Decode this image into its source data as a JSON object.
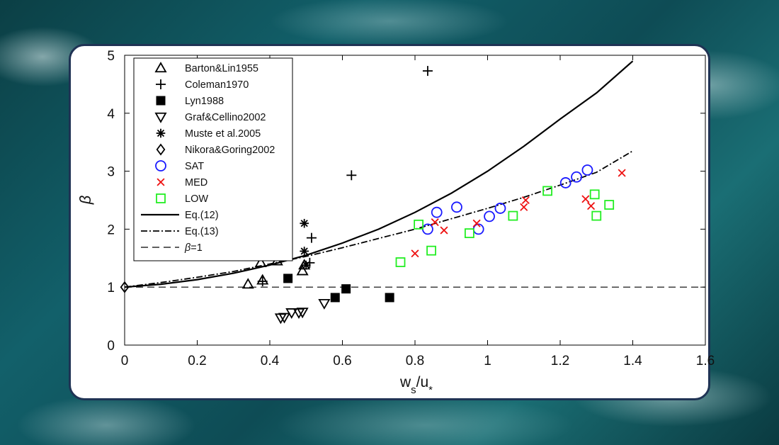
{
  "chart_data": {
    "type": "scatter",
    "title": "",
    "xlabel": "w_s/u_*",
    "ylabel": "β",
    "xlim": [
      0,
      1.6
    ],
    "ylim": [
      0,
      5
    ],
    "xticks": [
      "0",
      "0.2",
      "0.4",
      "0.6",
      "0.8",
      "1",
      "1.2",
      "1.4",
      "1.6"
    ],
    "yticks": [
      "0",
      "1",
      "2",
      "3",
      "4",
      "5"
    ],
    "grid": false,
    "legend_position": "top-left",
    "series": [
      {
        "name": "Barton&Lin1955",
        "marker": "triangle-up",
        "color": "#000000",
        "points": [
          [
            0.34,
            1.05
          ],
          [
            0.375,
            1.42
          ],
          [
            0.38,
            1.12
          ],
          [
            0.42,
            1.45
          ],
          [
            0.49,
            1.28
          ],
          [
            0.495,
            1.38
          ]
        ]
      },
      {
        "name": "Coleman1970",
        "marker": "plus",
        "color": "#000000",
        "points": [
          [
            0.835,
            4.73
          ],
          [
            0.625,
            2.93
          ],
          [
            0.515,
            1.85
          ],
          [
            0.51,
            1.42
          ],
          [
            0.38,
            1.1
          ]
        ]
      },
      {
        "name": "Lyn1988",
        "marker": "square-filled",
        "color": "#000000",
        "points": [
          [
            0.45,
            1.15
          ],
          [
            0.58,
            0.82
          ],
          [
            0.61,
            0.97
          ],
          [
            0.73,
            0.82
          ]
        ]
      },
      {
        "name": "Graf&Cellino2002",
        "marker": "triangle-down",
        "color": "#000000",
        "points": [
          [
            0.43,
            0.47
          ],
          [
            0.44,
            0.48
          ],
          [
            0.46,
            0.56
          ],
          [
            0.48,
            0.56
          ],
          [
            0.49,
            0.57
          ],
          [
            0.55,
            0.72
          ]
        ]
      },
      {
        "name": "Muste et al.2005",
        "marker": "asterisk",
        "color": "#000000",
        "points": [
          [
            0.495,
            2.1
          ],
          [
            0.495,
            1.62
          ],
          [
            0.5,
            1.38
          ]
        ]
      },
      {
        "name": "Nikora&Goring2002",
        "marker": "diamond",
        "color": "#000000",
        "points": [
          [
            0.0,
            1.0
          ]
        ]
      },
      {
        "name": "SAT",
        "marker": "circle",
        "color": "#1a1aff",
        "points": [
          [
            0.835,
            2.0
          ],
          [
            0.86,
            2.29
          ],
          [
            0.915,
            2.38
          ],
          [
            0.975,
            2.0
          ],
          [
            1.005,
            2.22
          ],
          [
            1.035,
            2.36
          ],
          [
            1.215,
            2.8
          ],
          [
            1.245,
            2.9
          ],
          [
            1.275,
            3.02
          ]
        ]
      },
      {
        "name": "MED",
        "marker": "x",
        "color": "#ee1111",
        "points": [
          [
            0.8,
            1.58
          ],
          [
            0.855,
            2.12
          ],
          [
            0.88,
            1.98
          ],
          [
            0.97,
            2.1
          ],
          [
            1.1,
            2.38
          ],
          [
            1.105,
            2.5
          ],
          [
            1.27,
            2.52
          ],
          [
            1.285,
            2.4
          ],
          [
            1.37,
            2.97
          ]
        ]
      },
      {
        "name": "LOW",
        "marker": "square",
        "color": "#22ee22",
        "points": [
          [
            0.76,
            1.43
          ],
          [
            0.81,
            2.08
          ],
          [
            0.845,
            1.63
          ],
          [
            0.95,
            1.93
          ],
          [
            1.07,
            2.23
          ],
          [
            1.165,
            2.66
          ],
          [
            1.295,
            2.6
          ],
          [
            1.3,
            2.23
          ],
          [
            1.335,
            2.42
          ]
        ]
      }
    ],
    "lines": [
      {
        "name": "Eq.(12)",
        "style": "solid",
        "color": "#000000",
        "x": [
          0,
          0.1,
          0.2,
          0.3,
          0.4,
          0.5,
          0.6,
          0.7,
          0.8,
          0.9,
          1.0,
          1.1,
          1.2,
          1.3,
          1.4
        ],
        "y": [
          1.0,
          1.05,
          1.13,
          1.24,
          1.38,
          1.55,
          1.76,
          2.0,
          2.29,
          2.62,
          3.0,
          3.43,
          3.9,
          4.35,
          4.9
        ]
      },
      {
        "name": "Eq.(13)",
        "style": "dashdot",
        "color": "#000000",
        "x": [
          0,
          0.1,
          0.2,
          0.3,
          0.4,
          0.5,
          0.6,
          0.7,
          0.8,
          0.9,
          1.0,
          1.1,
          1.2,
          1.3,
          1.4
        ],
        "y": [
          1.0,
          1.08,
          1.17,
          1.27,
          1.4,
          1.53,
          1.68,
          1.84,
          2.0,
          2.18,
          2.36,
          2.55,
          2.76,
          2.98,
          3.35
        ]
      },
      {
        "name": "β=1",
        "style": "dashed",
        "color": "#000000",
        "x": [
          0,
          1.6
        ],
        "y": [
          1,
          1
        ]
      }
    ]
  }
}
